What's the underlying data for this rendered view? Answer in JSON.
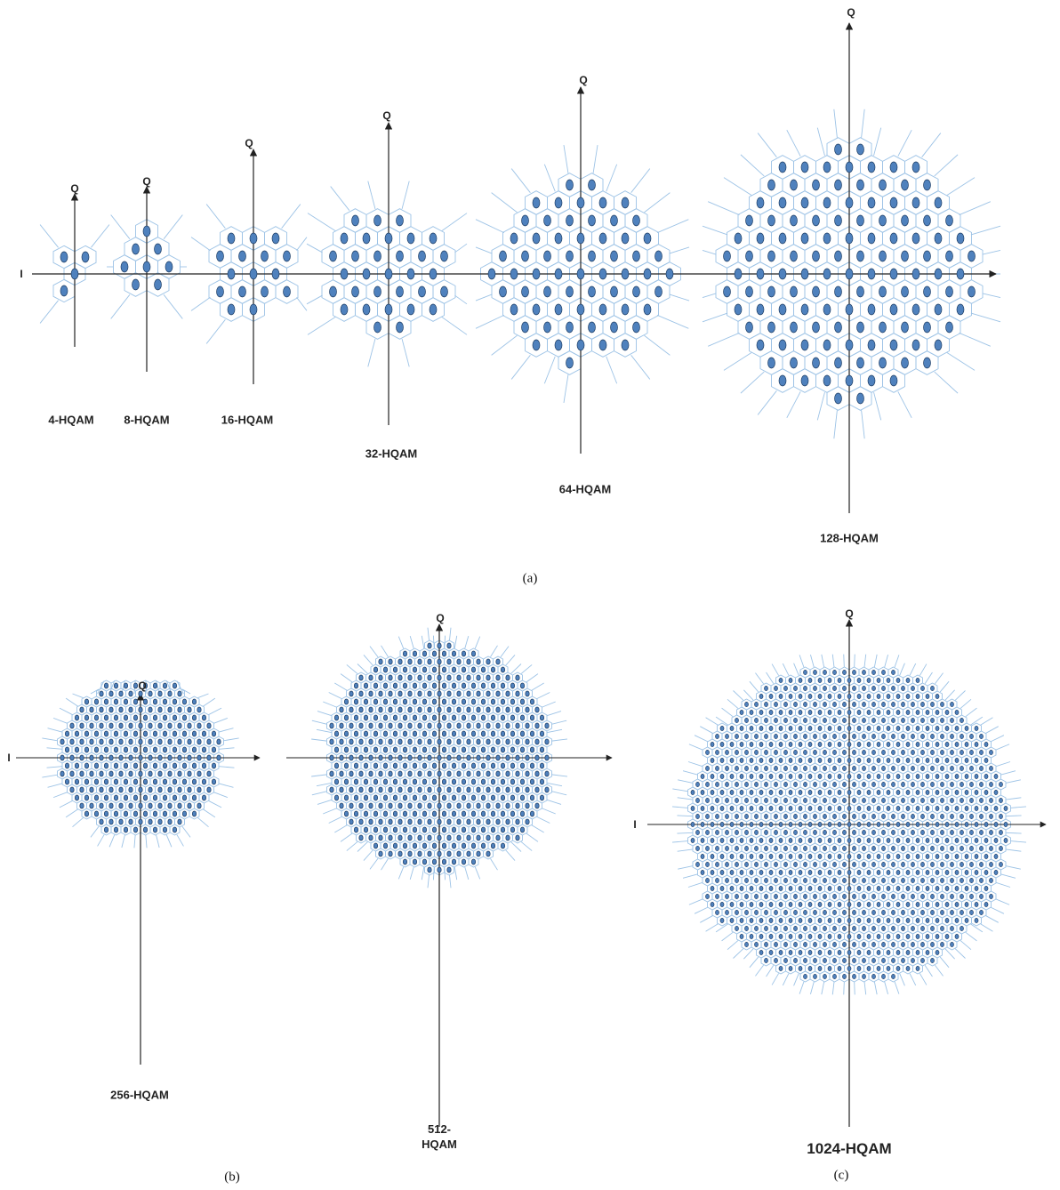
{
  "colors": {
    "point_fill": "#4f81bd",
    "point_stroke": "#1f3f66",
    "boundary": "#9dc3e6",
    "axis": "#222222"
  },
  "axis_labels": {
    "i": "I",
    "q": "Q"
  },
  "panel_labels": {
    "a": "(a)",
    "b": "(b)",
    "c": "(c)"
  },
  "constellations": [
    {
      "id": "hqam4",
      "label": "4-HQAM",
      "order": 4
    },
    {
      "id": "hqam8",
      "label": "8-HQAM",
      "order": 8
    },
    {
      "id": "hqam16",
      "label": "16-HQAM",
      "order": 16
    },
    {
      "id": "hqam32",
      "label": "32-HQAM",
      "order": 32
    },
    {
      "id": "hqam64",
      "label": "64-HQAM",
      "order": 64
    },
    {
      "id": "hqam128",
      "label": "128-HQAM",
      "order": 128
    },
    {
      "id": "hqam256",
      "label": "256-HQAM",
      "order": 256
    },
    {
      "id": "hqam512",
      "label": "512-HQAM",
      "label_lines": [
        "512-",
        "HQAM"
      ],
      "order": 512
    },
    {
      "id": "hqam1024",
      "label": "1024-HQAM",
      "order": 1024
    }
  ]
}
